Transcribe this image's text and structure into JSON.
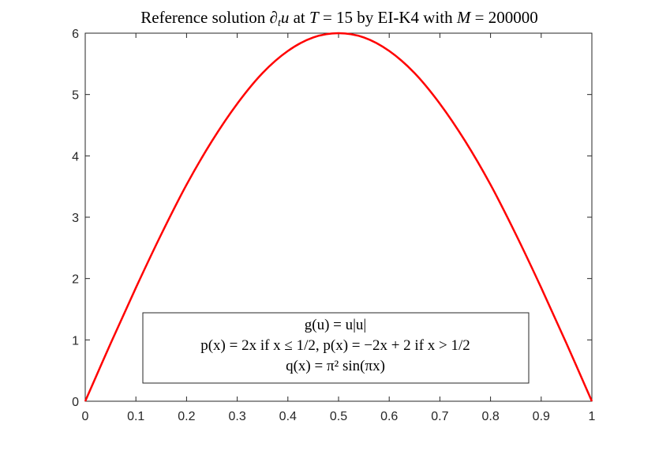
{
  "chart_data": {
    "type": "line",
    "title": {
      "pre": "Reference solution ",
      "op": "∂",
      "op_sub": "t",
      "var_u": "u",
      "at": " at ",
      "T": "T",
      "eq1": " = 15 by EI-K4 with ",
      "M": "M",
      "eq2": " = 200000"
    },
    "xlabel": "",
    "ylabel": "",
    "xlim": [
      0,
      1
    ],
    "ylim": [
      0,
      6
    ],
    "xticks": [
      "0",
      "0.1",
      "0.2",
      "0.3",
      "0.4",
      "0.5",
      "0.6",
      "0.7",
      "0.8",
      "0.9",
      "1"
    ],
    "yticks": [
      "0",
      "1",
      "2",
      "3",
      "4",
      "5",
      "6"
    ],
    "grid": false,
    "box": true,
    "series": [
      {
        "color": "#ff0000",
        "x": [
          0,
          0.05,
          0.1,
          0.15,
          0.2,
          0.25,
          0.3,
          0.35,
          0.4,
          0.45,
          0.5,
          0.55,
          0.6,
          0.65,
          0.7,
          0.75,
          0.8,
          0.85,
          0.9,
          0.95,
          1
        ],
        "y": [
          0,
          0.94,
          1.85,
          2.72,
          3.53,
          4.24,
          4.85,
          5.35,
          5.71,
          5.93,
          6.0,
          5.93,
          5.71,
          5.35,
          4.85,
          4.24,
          3.53,
          2.72,
          1.85,
          0.94,
          0
        ]
      }
    ],
    "annotation": {
      "lines": [
        "g(u) = u|u|",
        "p(x) = 2x if x ≤ 1/2, p(x) = −2x + 2 if x > 1/2",
        "q(x) = π² sin(πx)"
      ]
    }
  }
}
